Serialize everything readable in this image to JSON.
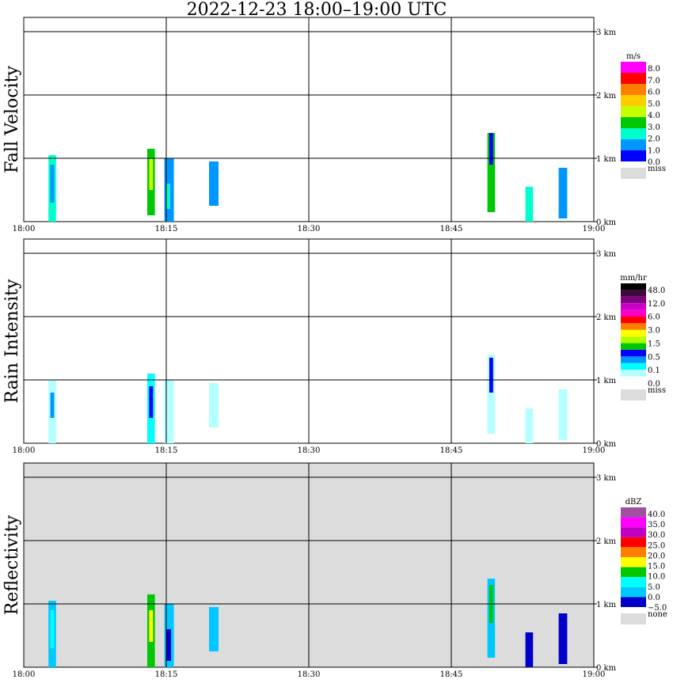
{
  "title": "2022-12-23   18:00–19:00 UTC",
  "chart_data": [
    {
      "type": "heatmap",
      "panel": "Fall Velocity",
      "ylabel": "Fall Velocity",
      "xlabel": "",
      "x_ticks": [
        "18:00",
        "18:15",
        "18:30",
        "18:45",
        "19:00"
      ],
      "y_ticks": [
        "0 km",
        "1 km",
        "2 km",
        "3 km"
      ],
      "ylim_km": [
        0,
        3
      ],
      "xlim_minutes": [
        0,
        60
      ],
      "grid": true,
      "legend": {
        "unit": "m/s",
        "placement": "right",
        "labels": [
          "8.0",
          "7.0",
          "6.0",
          "5.0",
          "4.0",
          "3.0",
          "2.0",
          "1.0",
          "0.0",
          "miss"
        ],
        "colors": [
          "#ff00ff",
          "#ff0000",
          "#ff7f00",
          "#ffcc00",
          "#c8ff00",
          "#00c800",
          "#00ffcc",
          "#0096ff",
          "#0000ff",
          "#dcdcdc"
        ]
      },
      "cells": [
        {
          "t0": 2.6,
          "t1": 3.4,
          "h0": 0.0,
          "h1": 1.05,
          "c": "#00ffcc"
        },
        {
          "t0": 2.8,
          "t1": 3.2,
          "h0": 0.3,
          "h1": 0.9,
          "c": "#0096ff"
        },
        {
          "t0": 13.0,
          "t1": 13.8,
          "h0": 0.1,
          "h1": 1.15,
          "c": "#00c800"
        },
        {
          "t0": 13.2,
          "t1": 13.6,
          "h0": 0.5,
          "h1": 1.0,
          "c": "#c8ff00"
        },
        {
          "t0": 14.8,
          "t1": 15.8,
          "h0": 0.0,
          "h1": 1.0,
          "c": "#0096ff"
        },
        {
          "t0": 15.0,
          "t1": 15.4,
          "h0": 0.2,
          "h1": 0.6,
          "c": "#00ffcc"
        },
        {
          "t0": 19.5,
          "t1": 20.5,
          "h0": 0.25,
          "h1": 0.95,
          "c": "#0096ff"
        },
        {
          "t0": 48.8,
          "t1": 49.6,
          "h0": 0.15,
          "h1": 1.4,
          "c": "#00c800"
        },
        {
          "t0": 49.0,
          "t1": 49.4,
          "h0": 0.9,
          "h1": 1.4,
          "c": "#0000ff"
        },
        {
          "t0": 52.8,
          "t1": 53.6,
          "h0": 0.0,
          "h1": 0.55,
          "c": "#00ffcc"
        },
        {
          "t0": 56.3,
          "t1": 57.2,
          "h0": 0.05,
          "h1": 0.85,
          "c": "#0096ff"
        }
      ]
    },
    {
      "type": "heatmap",
      "panel": "Rain Intensity",
      "ylabel": "Rain Intensity",
      "xlabel": "",
      "x_ticks": [
        "18:00",
        "18:15",
        "18:30",
        "18:45",
        "19:00"
      ],
      "y_ticks": [
        "0 km",
        "1 km",
        "2 km",
        "3 km"
      ],
      "ylim_km": [
        0,
        3
      ],
      "xlim_minutes": [
        0,
        60
      ],
      "grid": true,
      "legend": {
        "unit": "mm/hr",
        "placement": "right",
        "labels": [
          "48.0",
          "12.0",
          "6.0",
          "3.0",
          "1.5",
          "0.5",
          "0.1",
          "0.0",
          "miss"
        ],
        "colors": [
          "#000000",
          "#3c0a3c",
          "#800080",
          "#c800c8",
          "#ff00c8",
          "#ff0000",
          "#ff7f00",
          "#ffff00",
          "#b4ff00",
          "#00c800",
          "#0000ff",
          "#0096ff",
          "#00ffff",
          "#b4ffff",
          "#ffffff",
          "#dcdcdc"
        ]
      },
      "cells": [
        {
          "t0": 2.6,
          "t1": 3.4,
          "h0": 0.0,
          "h1": 1.0,
          "c": "#b4ffff"
        },
        {
          "t0": 2.8,
          "t1": 3.2,
          "h0": 0.4,
          "h1": 0.8,
          "c": "#0096ff"
        },
        {
          "t0": 13.0,
          "t1": 13.8,
          "h0": 0.0,
          "h1": 1.1,
          "c": "#00ffff"
        },
        {
          "t0": 13.2,
          "t1": 13.6,
          "h0": 0.4,
          "h1": 0.9,
          "c": "#0000ff"
        },
        {
          "t0": 14.8,
          "t1": 15.8,
          "h0": 0.0,
          "h1": 1.0,
          "c": "#b4ffff"
        },
        {
          "t0": 19.5,
          "t1": 20.5,
          "h0": 0.25,
          "h1": 0.95,
          "c": "#b4ffff"
        },
        {
          "t0": 48.8,
          "t1": 49.6,
          "h0": 0.15,
          "h1": 1.4,
          "c": "#b4ffff"
        },
        {
          "t0": 49.0,
          "t1": 49.4,
          "h0": 0.8,
          "h1": 1.35,
          "c": "#0000ff"
        },
        {
          "t0": 52.8,
          "t1": 53.6,
          "h0": 0.0,
          "h1": 0.55,
          "c": "#b4ffff"
        },
        {
          "t0": 56.3,
          "t1": 57.2,
          "h0": 0.05,
          "h1": 0.85,
          "c": "#b4ffff"
        }
      ]
    },
    {
      "type": "heatmap",
      "panel": "Reflectivity",
      "ylabel": "Reflectivity",
      "xlabel": "",
      "x_ticks": [
        "18:00",
        "18:15",
        "18:30",
        "18:45",
        "19:00"
      ],
      "y_ticks": [
        "0 km",
        "1 km",
        "2 km",
        "3 km"
      ],
      "ylim_km": [
        0,
        3
      ],
      "xlim_minutes": [
        0,
        60
      ],
      "grid": true,
      "background": "#dcdcdc",
      "legend": {
        "unit": "dBZ",
        "placement": "right",
        "labels": [
          "40.0",
          "35.0",
          "30.0",
          "25.0",
          "20.0",
          "15.0",
          "10.0",
          "5.0",
          "0.0",
          "−5.0",
          "none"
        ],
        "colors": [
          "#a050a0",
          "#ff00ff",
          "#c000c0",
          "#ff0000",
          "#ff8000",
          "#ffff00",
          "#00c800",
          "#00ffff",
          "#00c8ff",
          "#0000c8",
          "#dcdcdc"
        ]
      },
      "cells": [
        {
          "t0": 2.6,
          "t1": 3.4,
          "h0": 0.0,
          "h1": 1.05,
          "c": "#00c8ff"
        },
        {
          "t0": 2.8,
          "t1": 3.2,
          "h0": 0.3,
          "h1": 0.9,
          "c": "#00ffff"
        },
        {
          "t0": 13.0,
          "t1": 13.8,
          "h0": 0.0,
          "h1": 1.15,
          "c": "#00c800"
        },
        {
          "t0": 13.2,
          "t1": 13.6,
          "h0": 0.4,
          "h1": 0.9,
          "c": "#ffff00"
        },
        {
          "t0": 14.8,
          "t1": 15.8,
          "h0": 0.0,
          "h1": 1.0,
          "c": "#00c8ff"
        },
        {
          "t0": 15.0,
          "t1": 15.5,
          "h0": 0.1,
          "h1": 0.6,
          "c": "#0000c8"
        },
        {
          "t0": 19.5,
          "t1": 20.5,
          "h0": 0.25,
          "h1": 0.95,
          "c": "#00c8ff"
        },
        {
          "t0": 48.8,
          "t1": 49.6,
          "h0": 0.15,
          "h1": 1.4,
          "c": "#00c8ff"
        },
        {
          "t0": 49.0,
          "t1": 49.4,
          "h0": 0.7,
          "h1": 1.3,
          "c": "#00c800"
        },
        {
          "t0": 52.8,
          "t1": 53.6,
          "h0": 0.0,
          "h1": 0.55,
          "c": "#0000c8"
        },
        {
          "t0": 56.3,
          "t1": 57.2,
          "h0": 0.05,
          "h1": 0.85,
          "c": "#0000c8"
        }
      ]
    }
  ]
}
